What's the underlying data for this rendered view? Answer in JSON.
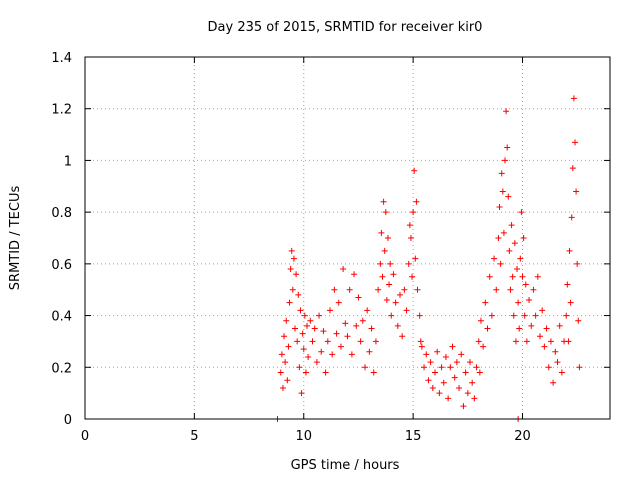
{
  "chart_data": {
    "type": "scatter",
    "title": "Day 235 of 2015, SRMTID for receiver kir0",
    "xlabel": "GPS time / hours",
    "ylabel": "SRMTID / TECUs",
    "xlim": [
      0,
      24
    ],
    "ylim": [
      0,
      1.4
    ],
    "xticks": [
      "0",
      "5",
      "10",
      "15",
      "20"
    ],
    "yticks": [
      "0",
      "0.2",
      "0.4",
      "0.6",
      "0.8",
      "1",
      "1.2",
      "1.4"
    ],
    "grid": true,
    "marker": "+",
    "color": "#ff0000",
    "series": [
      {
        "name": "kir0",
        "points": [
          [
            8.8,
            0.0
          ],
          [
            19.8,
            0.0
          ],
          [
            8.95,
            0.18
          ],
          [
            9.0,
            0.25
          ],
          [
            9.05,
            0.12
          ],
          [
            9.1,
            0.32
          ],
          [
            9.15,
            0.22
          ],
          [
            9.2,
            0.38
          ],
          [
            9.25,
            0.15
          ],
          [
            9.3,
            0.28
          ],
          [
            9.35,
            0.45
          ],
          [
            9.4,
            0.58
          ],
          [
            9.45,
            0.65
          ],
          [
            9.5,
            0.5
          ],
          [
            9.55,
            0.62
          ],
          [
            9.6,
            0.35
          ],
          [
            9.65,
            0.56
          ],
          [
            9.7,
            0.3
          ],
          [
            9.75,
            0.48
          ],
          [
            9.8,
            0.2
          ],
          [
            9.85,
            0.42
          ],
          [
            9.9,
            0.1
          ],
          [
            9.95,
            0.33
          ],
          [
            10.0,
            0.27
          ],
          [
            10.05,
            0.4
          ],
          [
            10.1,
            0.18
          ],
          [
            10.15,
            0.36
          ],
          [
            10.2,
            0.24
          ],
          [
            10.3,
            0.38
          ],
          [
            10.4,
            0.3
          ],
          [
            10.5,
            0.35
          ],
          [
            10.6,
            0.22
          ],
          [
            10.7,
            0.4
          ],
          [
            10.8,
            0.26
          ],
          [
            10.9,
            0.34
          ],
          [
            11.0,
            0.18
          ],
          [
            11.1,
            0.3
          ],
          [
            11.2,
            0.42
          ],
          [
            11.3,
            0.25
          ],
          [
            11.4,
            0.5
          ],
          [
            11.5,
            0.33
          ],
          [
            11.6,
            0.45
          ],
          [
            11.7,
            0.28
          ],
          [
            11.8,
            0.58
          ],
          [
            11.9,
            0.37
          ],
          [
            12.0,
            0.32
          ],
          [
            12.1,
            0.5
          ],
          [
            12.2,
            0.25
          ],
          [
            12.3,
            0.56
          ],
          [
            12.4,
            0.36
          ],
          [
            12.5,
            0.47
          ],
          [
            12.6,
            0.3
          ],
          [
            12.7,
            0.38
          ],
          [
            12.8,
            0.2
          ],
          [
            12.9,
            0.42
          ],
          [
            13.0,
            0.26
          ],
          [
            13.1,
            0.35
          ],
          [
            13.2,
            0.18
          ],
          [
            13.3,
            0.3
          ],
          [
            13.4,
            0.5
          ],
          [
            13.5,
            0.6
          ],
          [
            13.55,
            0.72
          ],
          [
            13.6,
            0.55
          ],
          [
            13.65,
            0.84
          ],
          [
            13.7,
            0.65
          ],
          [
            13.75,
            0.8
          ],
          [
            13.8,
            0.46
          ],
          [
            13.85,
            0.7
          ],
          [
            13.9,
            0.52
          ],
          [
            13.95,
            0.6
          ],
          [
            14.0,
            0.4
          ],
          [
            14.1,
            0.56
          ],
          [
            14.2,
            0.45
          ],
          [
            14.3,
            0.36
          ],
          [
            14.4,
            0.48
          ],
          [
            14.5,
            0.32
          ],
          [
            14.6,
            0.5
          ],
          [
            14.7,
            0.42
          ],
          [
            14.8,
            0.6
          ],
          [
            14.85,
            0.75
          ],
          [
            14.9,
            0.7
          ],
          [
            14.95,
            0.55
          ],
          [
            15.0,
            0.8
          ],
          [
            15.05,
            0.96
          ],
          [
            15.1,
            0.62
          ],
          [
            15.15,
            0.84
          ],
          [
            15.2,
            0.5
          ],
          [
            15.3,
            0.4
          ],
          [
            15.35,
            0.3
          ],
          [
            15.4,
            0.28
          ],
          [
            15.5,
            0.2
          ],
          [
            15.6,
            0.25
          ],
          [
            15.7,
            0.15
          ],
          [
            15.8,
            0.22
          ],
          [
            15.9,
            0.12
          ],
          [
            16.0,
            0.18
          ],
          [
            16.1,
            0.26
          ],
          [
            16.2,
            0.1
          ],
          [
            16.3,
            0.2
          ],
          [
            16.4,
            0.14
          ],
          [
            16.5,
            0.24
          ],
          [
            16.6,
            0.08
          ],
          [
            16.7,
            0.2
          ],
          [
            16.8,
            0.28
          ],
          [
            16.9,
            0.16
          ],
          [
            17.0,
            0.22
          ],
          [
            17.1,
            0.12
          ],
          [
            17.2,
            0.25
          ],
          [
            17.3,
            0.05
          ],
          [
            17.4,
            0.18
          ],
          [
            17.5,
            0.1
          ],
          [
            17.6,
            0.22
          ],
          [
            17.7,
            0.14
          ],
          [
            17.8,
            0.08
          ],
          [
            17.9,
            0.2
          ],
          [
            18.0,
            0.3
          ],
          [
            18.05,
            0.18
          ],
          [
            18.1,
            0.38
          ],
          [
            18.2,
            0.28
          ],
          [
            18.3,
            0.45
          ],
          [
            18.4,
            0.35
          ],
          [
            18.5,
            0.55
          ],
          [
            18.6,
            0.4
          ],
          [
            18.7,
            0.62
          ],
          [
            18.8,
            0.5
          ],
          [
            18.9,
            0.7
          ],
          [
            18.95,
            0.82
          ],
          [
            19.0,
            0.6
          ],
          [
            19.05,
            0.95
          ],
          [
            19.1,
            0.88
          ],
          [
            19.15,
            0.72
          ],
          [
            19.2,
            1.0
          ],
          [
            19.25,
            1.19
          ],
          [
            19.3,
            1.05
          ],
          [
            19.35,
            0.86
          ],
          [
            19.4,
            0.65
          ],
          [
            19.45,
            0.5
          ],
          [
            19.5,
            0.75
          ],
          [
            19.55,
            0.55
          ],
          [
            19.6,
            0.4
          ],
          [
            19.65,
            0.68
          ],
          [
            19.7,
            0.3
          ],
          [
            19.75,
            0.58
          ],
          [
            19.8,
            0.45
          ],
          [
            19.85,
            0.35
          ],
          [
            19.9,
            0.62
          ],
          [
            19.95,
            0.8
          ],
          [
            20.0,
            0.55
          ],
          [
            20.05,
            0.7
          ],
          [
            20.1,
            0.4
          ],
          [
            20.15,
            0.52
          ],
          [
            20.2,
            0.3
          ],
          [
            20.3,
            0.46
          ],
          [
            20.4,
            0.36
          ],
          [
            20.5,
            0.5
          ],
          [
            20.6,
            0.4
          ],
          [
            20.7,
            0.55
          ],
          [
            20.8,
            0.32
          ],
          [
            20.9,
            0.42
          ],
          [
            21.0,
            0.28
          ],
          [
            21.1,
            0.35
          ],
          [
            21.2,
            0.2
          ],
          [
            21.3,
            0.3
          ],
          [
            21.4,
            0.14
          ],
          [
            21.5,
            0.26
          ],
          [
            21.6,
            0.22
          ],
          [
            21.7,
            0.36
          ],
          [
            21.8,
            0.18
          ],
          [
            21.9,
            0.3
          ],
          [
            22.0,
            0.4
          ],
          [
            22.05,
            0.52
          ],
          [
            22.1,
            0.3
          ],
          [
            22.15,
            0.65
          ],
          [
            22.2,
            0.45
          ],
          [
            22.25,
            0.78
          ],
          [
            22.3,
            0.97
          ],
          [
            22.35,
            1.24
          ],
          [
            22.4,
            1.07
          ],
          [
            22.45,
            0.88
          ],
          [
            22.5,
            0.6
          ],
          [
            22.55,
            0.38
          ],
          [
            22.6,
            0.2
          ]
        ]
      }
    ]
  }
}
